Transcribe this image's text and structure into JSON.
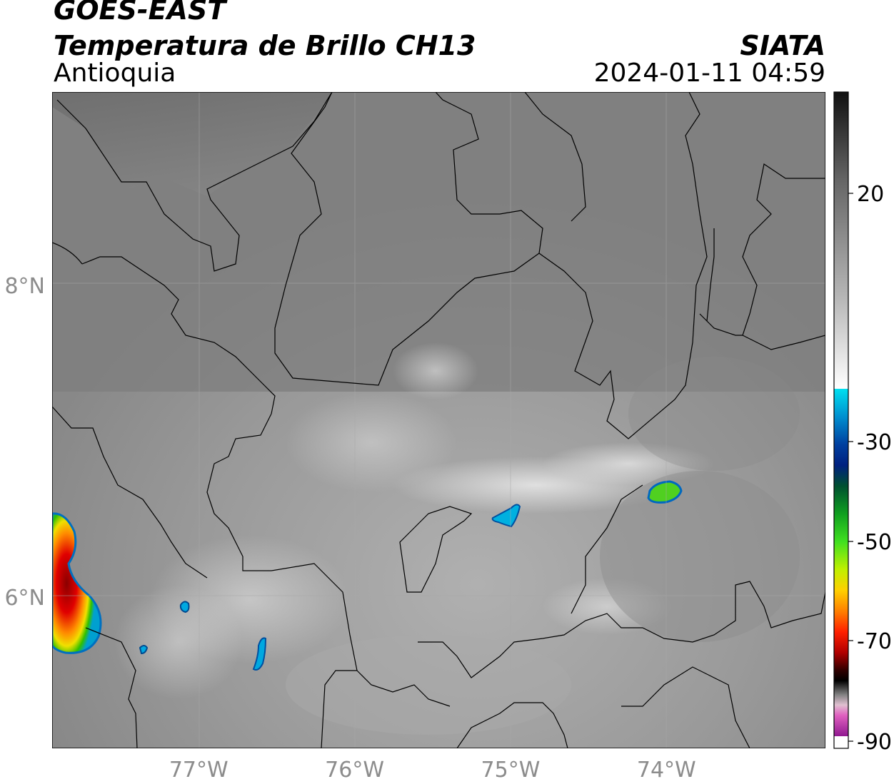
{
  "header": {
    "satellite": "GOES-EAST",
    "product": "Temperatura de Brillo CH13",
    "region": "Antioquia",
    "agency": "SIATA",
    "timestamp": "2024-01-11 04:59"
  },
  "map": {
    "lat_labels": [
      "8°N",
      "6°N"
    ],
    "lon_labels": [
      "77°W",
      "76°W",
      "75°W",
      "74°W"
    ],
    "lat_values": [
      8,
      6
    ],
    "lon_values": [
      -77,
      -76,
      -75,
      -74
    ],
    "extent": {
      "lon_min": -77.94,
      "lon_max": -72.98,
      "lat_min": 5.03,
      "lat_max": 9.24
    },
    "gridlines": true
  },
  "colorbar": {
    "tick_labels": [
      "20",
      "-30",
      "-50",
      "-70",
      "-90"
    ],
    "tick_values": [
      20,
      -30,
      -50,
      -70,
      -90
    ],
    "range": [
      -92,
      40
    ]
  },
  "colors": {
    "background_gray": "#8a8a8a",
    "deep_convection_red": "#e00000",
    "deep_convection_green": "#30d000",
    "cloud_blue": "#0070c0",
    "cloud_cyan": "#00d8f0"
  }
}
